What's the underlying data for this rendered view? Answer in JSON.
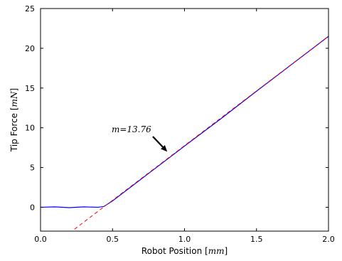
{
  "chart_data": {
    "type": "line",
    "title": "",
    "xlabel": "Robot Position",
    "xlabel_unit": "mm",
    "ylabel": "Tip Force",
    "ylabel_unit": "mN",
    "xlim": [
      0.0,
      2.0
    ],
    "ylim": [
      -3,
      25
    ],
    "x_ticks": [
      0.0,
      0.5,
      1.0,
      1.5,
      2.0
    ],
    "x_tick_labels": [
      "0.0",
      "0.5",
      "1.0",
      "1.5",
      "2.0"
    ],
    "y_ticks": [
      0,
      5,
      10,
      15,
      20,
      25
    ],
    "y_tick_labels": [
      "0",
      "5",
      "10",
      "15",
      "20",
      "25"
    ],
    "grid": false,
    "legend": "none",
    "series": [
      {
        "style": "solid",
        "color": "#0000ff",
        "x": [
          0.0,
          0.1,
          0.2,
          0.3,
          0.4,
          0.44,
          0.5,
          0.75,
          1.0,
          1.25,
          1.5,
          1.75,
          2.0
        ],
        "y": [
          0.0,
          0.05,
          -0.05,
          0.05,
          0.0,
          0.1,
          0.8,
          4.25,
          7.7,
          11.1,
          14.6,
          18.05,
          21.5
        ]
      },
      {
        "style": "dashed",
        "color": "#ff0000",
        "fit": {
          "slope": 13.76,
          "intercept": -6.0
        },
        "x": [
          0.2,
          2.0
        ],
        "y": [
          -3.25,
          21.52
        ]
      }
    ],
    "annotations": [
      {
        "text": "m=13.76",
        "arrow_from": {
          "x": 0.78,
          "y": 8.9
        },
        "arrow_to": {
          "x": 0.88,
          "y": 7.0
        }
      }
    ]
  }
}
